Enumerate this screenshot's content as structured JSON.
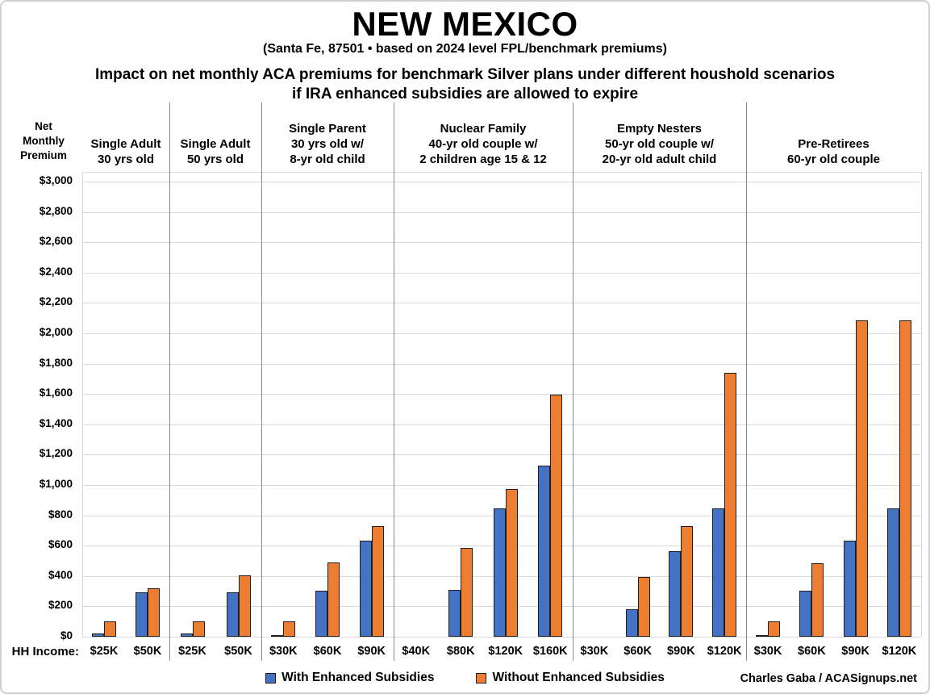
{
  "header": {
    "title": "NEW MEXICO",
    "subtitle": "(Santa Fe, 87501 • based on 2024 level FPL/benchmark premiums)",
    "description_line1": "Impact on net monthly ACA premiums for benchmark Silver plans under different houshold scenarios",
    "description_line2": "if IRA enhanced subsidies are allowed to expire"
  },
  "axis": {
    "label_lines": [
      "Net",
      "Monthly",
      "Premium"
    ],
    "income_prefix": "HH Income:"
  },
  "legend": [
    {
      "label": "With Enhanced Subsidies",
      "color": "#4472C4"
    },
    {
      "label": "Without Enhanced Subsidies",
      "color": "#ED7D31"
    }
  ],
  "credit": "Charles Gaba / ACASignups.net",
  "chart_data": {
    "type": "bar",
    "title": "Impact on net monthly ACA premiums for benchmark Silver plans under different houshold scenarios if IRA enhanced subsidies are allowed to expire",
    "ylabel": "Net Monthly Premium",
    "xlabel": "HH Income",
    "ylim": [
      0,
      3000
    ],
    "grid": true,
    "legend_position": "bottom",
    "series_names": [
      "With Enhanced Subsidies",
      "Without Enhanced Subsidies"
    ],
    "series_colors": [
      "#4472C4",
      "#ED7D31"
    ],
    "ytick_values": [
      0,
      200,
      400,
      600,
      800,
      1000,
      1200,
      1400,
      1600,
      1800,
      2000,
      2200,
      2400,
      2600,
      2800,
      3000
    ],
    "ytick_labels": [
      "$0",
      "$200",
      "$400",
      "$600",
      "$800",
      "$1,000",
      "$1,200",
      "$1,400",
      "$1,600",
      "$1,800",
      "$2,000",
      "$2,200",
      "$2,400",
      "$2,600",
      "$2,800",
      "$3,000"
    ],
    "groups": [
      {
        "label_lines": [
          "Single Adult",
          "30 yrs old"
        ],
        "slots": [
          {
            "income": "$25K",
            "with_enhanced": 20,
            "without_enhanced": 100
          },
          {
            "income": "$50K",
            "with_enhanced": 295,
            "without_enhanced": 320
          }
        ]
      },
      {
        "label_lines": [
          "Single Adult",
          "50 yrs old"
        ],
        "slots": [
          {
            "income": "$25K",
            "with_enhanced": 20,
            "without_enhanced": 100
          },
          {
            "income": "$50K",
            "with_enhanced": 295,
            "without_enhanced": 405
          }
        ]
      },
      {
        "label_lines": [
          "Single Parent",
          "30 yrs old w/",
          "8-yr old child"
        ],
        "slots": [
          {
            "income": "$30K",
            "with_enhanced": 10,
            "without_enhanced": 100
          },
          {
            "income": "$60K",
            "with_enhanced": 305,
            "without_enhanced": 490
          },
          {
            "income": "$90K",
            "with_enhanced": 635,
            "without_enhanced": 730
          }
        ]
      },
      {
        "label_lines": [
          "Nuclear Family",
          "40-yr old couple w/",
          "2 children age 15 & 12"
        ],
        "slots": [
          {
            "income": "$40K",
            "with_enhanced": 0,
            "without_enhanced": 0
          },
          {
            "income": "$80K",
            "with_enhanced": 310,
            "without_enhanced": 585
          },
          {
            "income": "$120K",
            "with_enhanced": 845,
            "without_enhanced": 975
          },
          {
            "income": "$160K",
            "with_enhanced": 1130,
            "without_enhanced": 1595
          }
        ]
      },
      {
        "label_lines": [
          "Empty Nesters",
          "50-yr old couple w/",
          "20-yr old adult child"
        ],
        "slots": [
          {
            "income": "$30K",
            "with_enhanced": 0,
            "without_enhanced": 0
          },
          {
            "income": "$60K",
            "with_enhanced": 180,
            "without_enhanced": 395
          },
          {
            "income": "$90K",
            "with_enhanced": 565,
            "without_enhanced": 730
          },
          {
            "income": "$120K",
            "with_enhanced": 845,
            "without_enhanced": 1740
          }
        ]
      },
      {
        "label_lines": [
          "Pre-Retirees",
          "60-yr old couple"
        ],
        "slots": [
          {
            "income": "$30K",
            "with_enhanced": 10,
            "without_enhanced": 100
          },
          {
            "income": "$60K",
            "with_enhanced": 305,
            "without_enhanced": 485
          },
          {
            "income": "$90K",
            "with_enhanced": 635,
            "without_enhanced": 2085
          },
          {
            "income": "$120K",
            "with_enhanced": 845,
            "without_enhanced": 2085
          }
        ]
      }
    ]
  }
}
